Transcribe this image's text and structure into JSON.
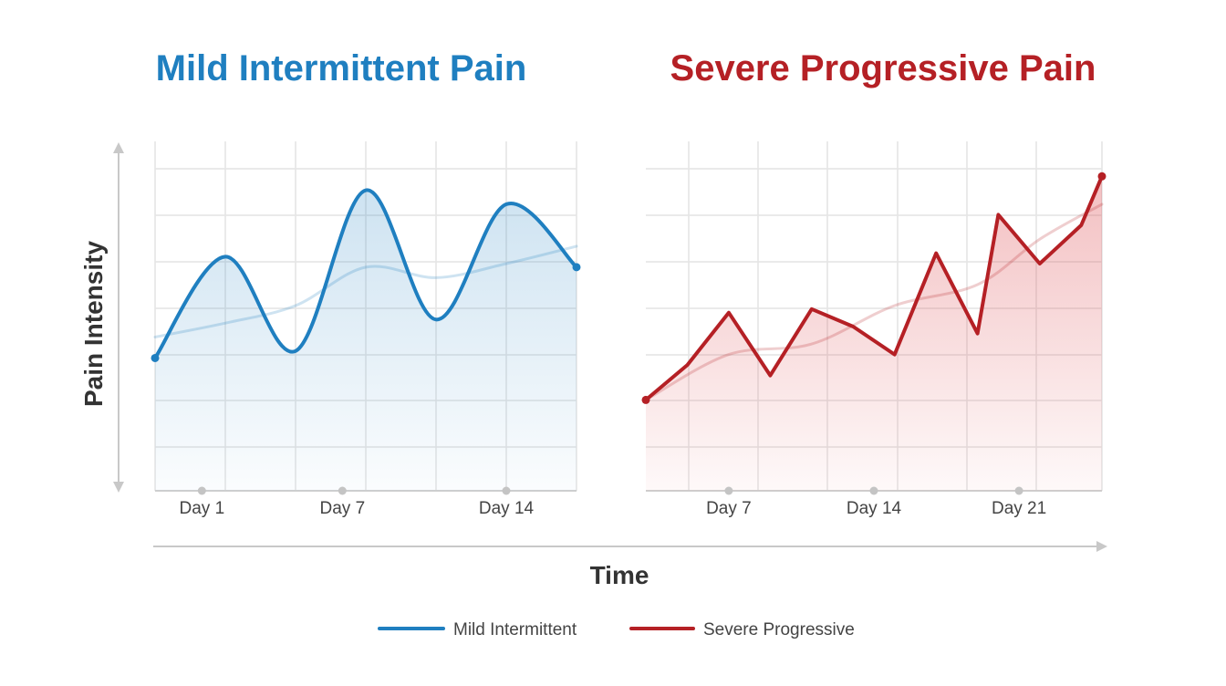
{
  "colors": {
    "mild": "#1f7fc0",
    "severe": "#b52025",
    "grid": "#e2e2e2",
    "axis": "#c8c8c8"
  },
  "axes": {
    "y_label": "Pain Intensity",
    "x_label": "Time"
  },
  "legend": {
    "placement": "bottom-center",
    "items": [
      {
        "label": "Mild Intermittent",
        "color": "#1f7fc0"
      },
      {
        "label": "Severe Progressive",
        "color": "#b52025"
      }
    ]
  },
  "chart_data": [
    {
      "type": "line",
      "title": "Mild Intermittent Pain",
      "color": "#1f7fc0",
      "xlim": [
        -1,
        17
      ],
      "ylim": [
        0,
        10
      ],
      "grid": true,
      "tick_labels": [
        {
          "x": 1,
          "label": "Day 1"
        },
        {
          "x": 7,
          "label": "Day 7"
        },
        {
          "x": 14,
          "label": "Day 14"
        }
      ],
      "series": [
        {
          "name": "Mild Intermittent",
          "style": "solid",
          "x": [
            -1,
            2,
            5,
            8,
            11,
            14,
            17
          ],
          "y": [
            3.8,
            6.7,
            4.0,
            8.6,
            4.9,
            8.2,
            6.4
          ]
        },
        {
          "name": "",
          "style": "trend",
          "x": [
            -1,
            2,
            5,
            8,
            11,
            14,
            17
          ],
          "y": [
            4.4,
            4.8,
            5.3,
            6.4,
            6.1,
            6.5,
            7.0
          ]
        }
      ]
    },
    {
      "type": "area",
      "title": "Severe Progressive Pain",
      "color": "#b52025",
      "xlim": [
        3,
        25
      ],
      "ylim": [
        0,
        10
      ],
      "grid": true,
      "tick_labels": [
        {
          "x": 7,
          "label": "Day 7"
        },
        {
          "x": 14,
          "label": "Day 14"
        },
        {
          "x": 21,
          "label": "Day 21"
        }
      ],
      "series": [
        {
          "name": "Severe Progressive",
          "style": "solid",
          "x": [
            3,
            5,
            7,
            9,
            11,
            13,
            15,
            17,
            19,
            20,
            22,
            24,
            25
          ],
          "y": [
            2.6,
            3.6,
            5.1,
            3.3,
            5.2,
            4.7,
            3.9,
            6.8,
            4.5,
            7.9,
            6.5,
            7.6,
            9.0
          ]
        },
        {
          "name": "",
          "style": "trend",
          "x": [
            3,
            7,
            11,
            15,
            19,
            22,
            25
          ],
          "y": [
            2.6,
            3.9,
            4.2,
            5.3,
            5.9,
            7.2,
            8.2
          ]
        }
      ]
    }
  ]
}
